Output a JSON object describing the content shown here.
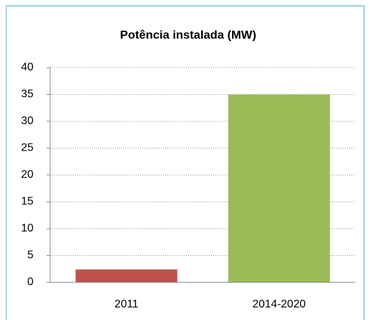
{
  "chart_data": {
    "type": "bar",
    "title": "Potência instalada (MW)",
    "categories": [
      "2011",
      "2014-2020"
    ],
    "values": [
      2.4,
      35
    ],
    "colors": [
      "#c0504d",
      "#9bbb59"
    ],
    "ylim": [
      0,
      40
    ],
    "yticks": [
      0,
      5,
      10,
      15,
      20,
      25,
      30,
      35,
      40
    ],
    "grid": true
  }
}
